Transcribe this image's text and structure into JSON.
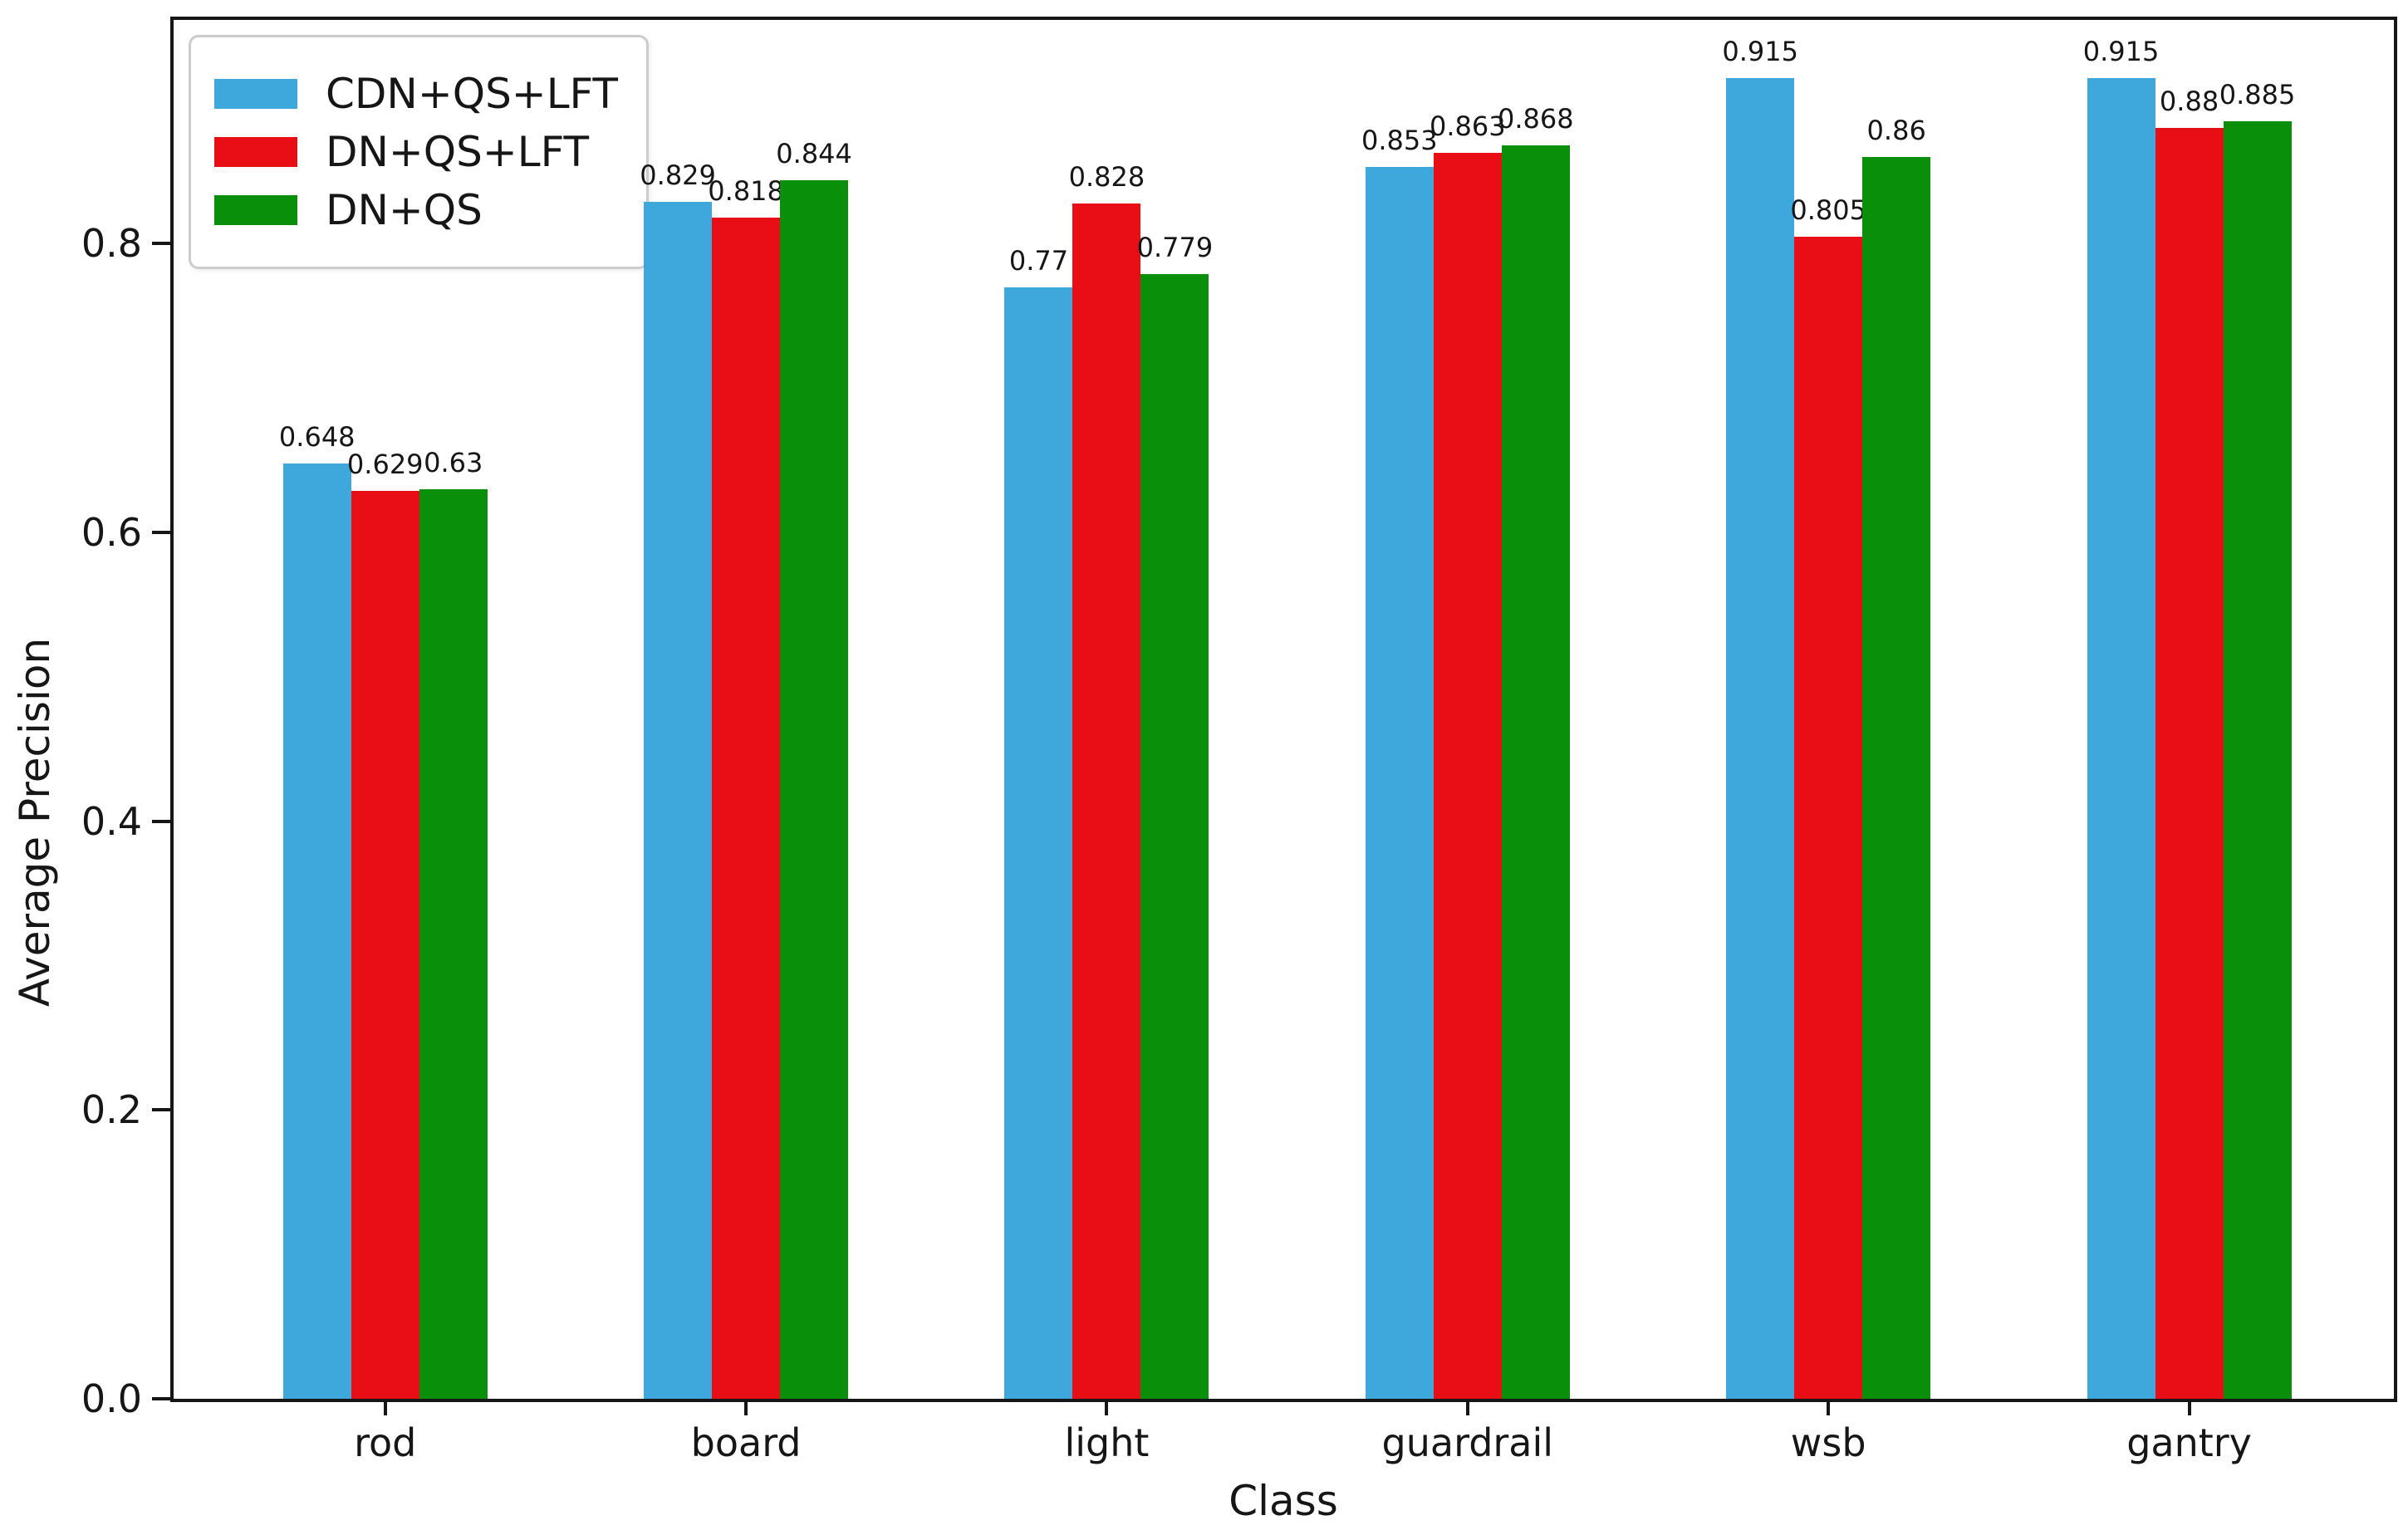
{
  "chart_data": {
    "type": "bar",
    "title": "",
    "title_cropped_out_of_frame": true,
    "xlabel": "Class",
    "ylabel": "Average Precision",
    "categories": [
      "rod",
      "board",
      "light",
      "guardrail",
      "wsb",
      "gantry"
    ],
    "series": [
      {
        "name": "CDN+QS+LFT",
        "color": "#3ea8dc",
        "values": [
          0.648,
          0.829,
          0.77,
          0.853,
          0.915,
          0.915
        ]
      },
      {
        "name": "DN+QS+LFT",
        "color": "#e90d15",
        "values": [
          0.629,
          0.818,
          0.828,
          0.863,
          0.805,
          0.88
        ]
      },
      {
        "name": "DN+QS",
        "color": "#0a8f0a",
        "values": [
          0.63,
          0.844,
          0.779,
          0.868,
          0.86,
          0.885
        ]
      }
    ],
    "ytick_labels": [
      "0.0",
      "0.2",
      "0.4",
      "0.6",
      "0.8"
    ],
    "ylim": [
      0,
      0.955
    ],
    "grid": false,
    "legend_position": "upper left",
    "bar_value_labels_shown": true,
    "axis_color": "#161616",
    "background_color": "#ffffff"
  }
}
